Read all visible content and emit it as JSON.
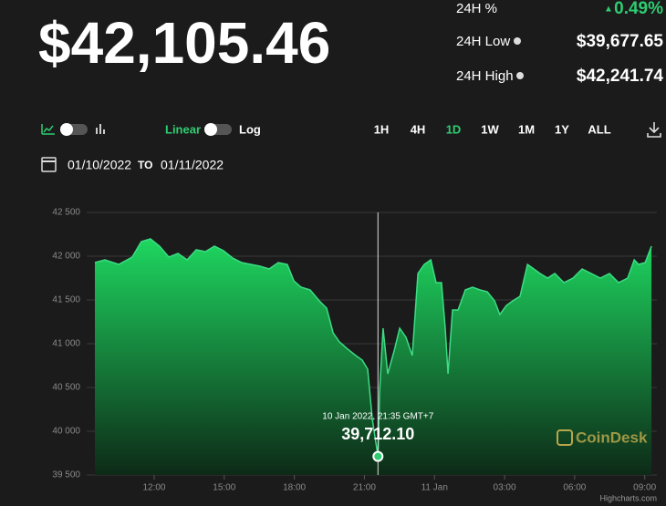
{
  "header": {
    "price": "$42,105.46",
    "change_label": "24H %",
    "change": "0.49%",
    "low_label": "24H Low",
    "low": "$39,677.65",
    "high_label": "24H High",
    "high": "$42,241.74"
  },
  "controls": {
    "linear": "Linear",
    "log": "Log",
    "ranges": [
      "1H",
      "4H",
      "1D",
      "1W",
      "1M",
      "1Y",
      "ALL"
    ],
    "active_range": "1D",
    "date_from": "01/10/2022",
    "date_to_label": "TO",
    "date_to": "01/11/2022"
  },
  "chart_data": {
    "type": "area",
    "color": "#3ddc84",
    "x": [
      9.46,
      9.89,
      10.48,
      11.06,
      11.45,
      11.84,
      12.23,
      12.63,
      13.02,
      13.41,
      13.8,
      14.19,
      14.58,
      14.97,
      15.36,
      15.75,
      16.14,
      16.53,
      16.92,
      17.31,
      17.7,
      17.98,
      18.29,
      18.68,
      19.07,
      19.38,
      19.66,
      19.93,
      20.24,
      20.63,
      20.91,
      21.14,
      21.34,
      21.58,
      21.65,
      21.8,
      22.0,
      22.27,
      22.51,
      22.78,
      23.05,
      23.29,
      23.56,
      23.84,
      24.07,
      24.3,
      24.46,
      24.58,
      24.77,
      25.01,
      25.32,
      25.63,
      25.95,
      26.26,
      26.57,
      26.8,
      27.08,
      27.35,
      27.66,
      27.98,
      28.25,
      28.52,
      28.84,
      29.15,
      29.54,
      29.93,
      30.32,
      30.71,
      31.1,
      31.49,
      31.88,
      32.27,
      32.55,
      32.74,
      33.02,
      33.29
    ],
    "values": [
      41927,
      41958,
      41906,
      41990,
      42167,
      42198,
      42115,
      41990,
      42031,
      41958,
      42073,
      42052,
      42115,
      42062,
      41979,
      41927,
      41906,
      41885,
      41854,
      41927,
      41906,
      41719,
      41646,
      41615,
      41490,
      41406,
      41125,
      41021,
      40948,
      40865,
      40812,
      40708,
      40135,
      39712.1,
      40448,
      41177,
      40656,
      40917,
      41177,
      41073,
      40865,
      41802,
      41906,
      41958,
      41698,
      41698,
      41177,
      40656,
      41385,
      41385,
      41615,
      41646,
      41615,
      41594,
      41490,
      41333,
      41437,
      41490,
      41542,
      41906,
      41854,
      41802,
      41750,
      41802,
      41698,
      41750,
      41854,
      41802,
      41750,
      41802,
      41698,
      41750,
      41958,
      41906,
      41927,
      42115
    ],
    "xlim": [
      9.11,
      33.52
    ],
    "ylim": [
      39500,
      42500
    ],
    "xticks": [
      {
        "value": 12,
        "label": "12:00"
      },
      {
        "value": 15,
        "label": "15:00"
      },
      {
        "value": 18,
        "label": "18:00"
      },
      {
        "value": 21,
        "label": "21:00"
      },
      {
        "value": 24,
        "label": "11 Jan"
      },
      {
        "value": 27,
        "label": "03:00"
      },
      {
        "value": 30,
        "label": "06:00"
      },
      {
        "value": 33,
        "label": "09:00"
      }
    ],
    "yticks": [
      {
        "value": 39500,
        "label": "39 500"
      },
      {
        "value": 40000,
        "label": "40 000"
      },
      {
        "value": 40500,
        "label": "40 500"
      },
      {
        "value": 41000,
        "label": "41 000"
      },
      {
        "value": 41500,
        "label": "41 500"
      },
      {
        "value": 42000,
        "label": "42 000"
      },
      {
        "value": 42500,
        "label": "42 500"
      }
    ],
    "grid": true,
    "tooltip": {
      "label": "10 Jan 2022, 21:35 GMT+7",
      "value_label": "39,712.10"
    },
    "watermark": "CoinDesk",
    "credits": "Highcharts.com"
  }
}
